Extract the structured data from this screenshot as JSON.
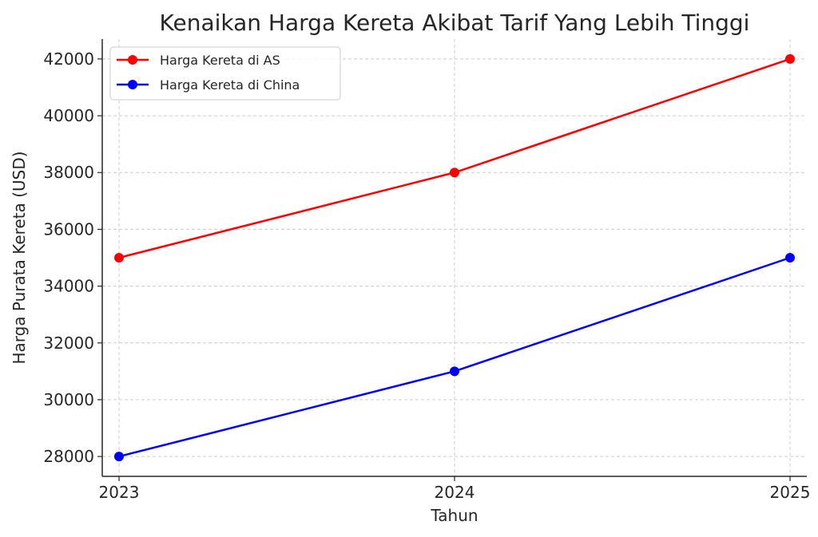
{
  "chart_data": {
    "type": "line",
    "title": "Kenaikan Harga Kereta Akibat Tarif Yang Lebih Tinggi",
    "xlabel": "Tahun",
    "ylabel": "Harga Purata Kereta (USD)",
    "x": [
      2023,
      2024,
      2025
    ],
    "x_tick_labels": [
      "2023",
      "2024",
      "2025"
    ],
    "y_ticks": [
      28000,
      30000,
      32000,
      34000,
      36000,
      38000,
      40000,
      42000
    ],
    "y_tick_labels": [
      "28000",
      "30000",
      "32000",
      "34000",
      "36000",
      "38000",
      "40000",
      "42000"
    ],
    "ylim": [
      27300,
      42700
    ],
    "xlim": [
      2022.95,
      2025.05
    ],
    "grid": true,
    "legend_position": "top-left",
    "series": [
      {
        "name": "Harga Kereta di AS",
        "color": "#ff0000",
        "values": [
          35000,
          38000,
          42000
        ]
      },
      {
        "name": "Harga Kereta di China",
        "color": "#0000ff",
        "values": [
          28000,
          31000,
          35000
        ]
      }
    ]
  }
}
